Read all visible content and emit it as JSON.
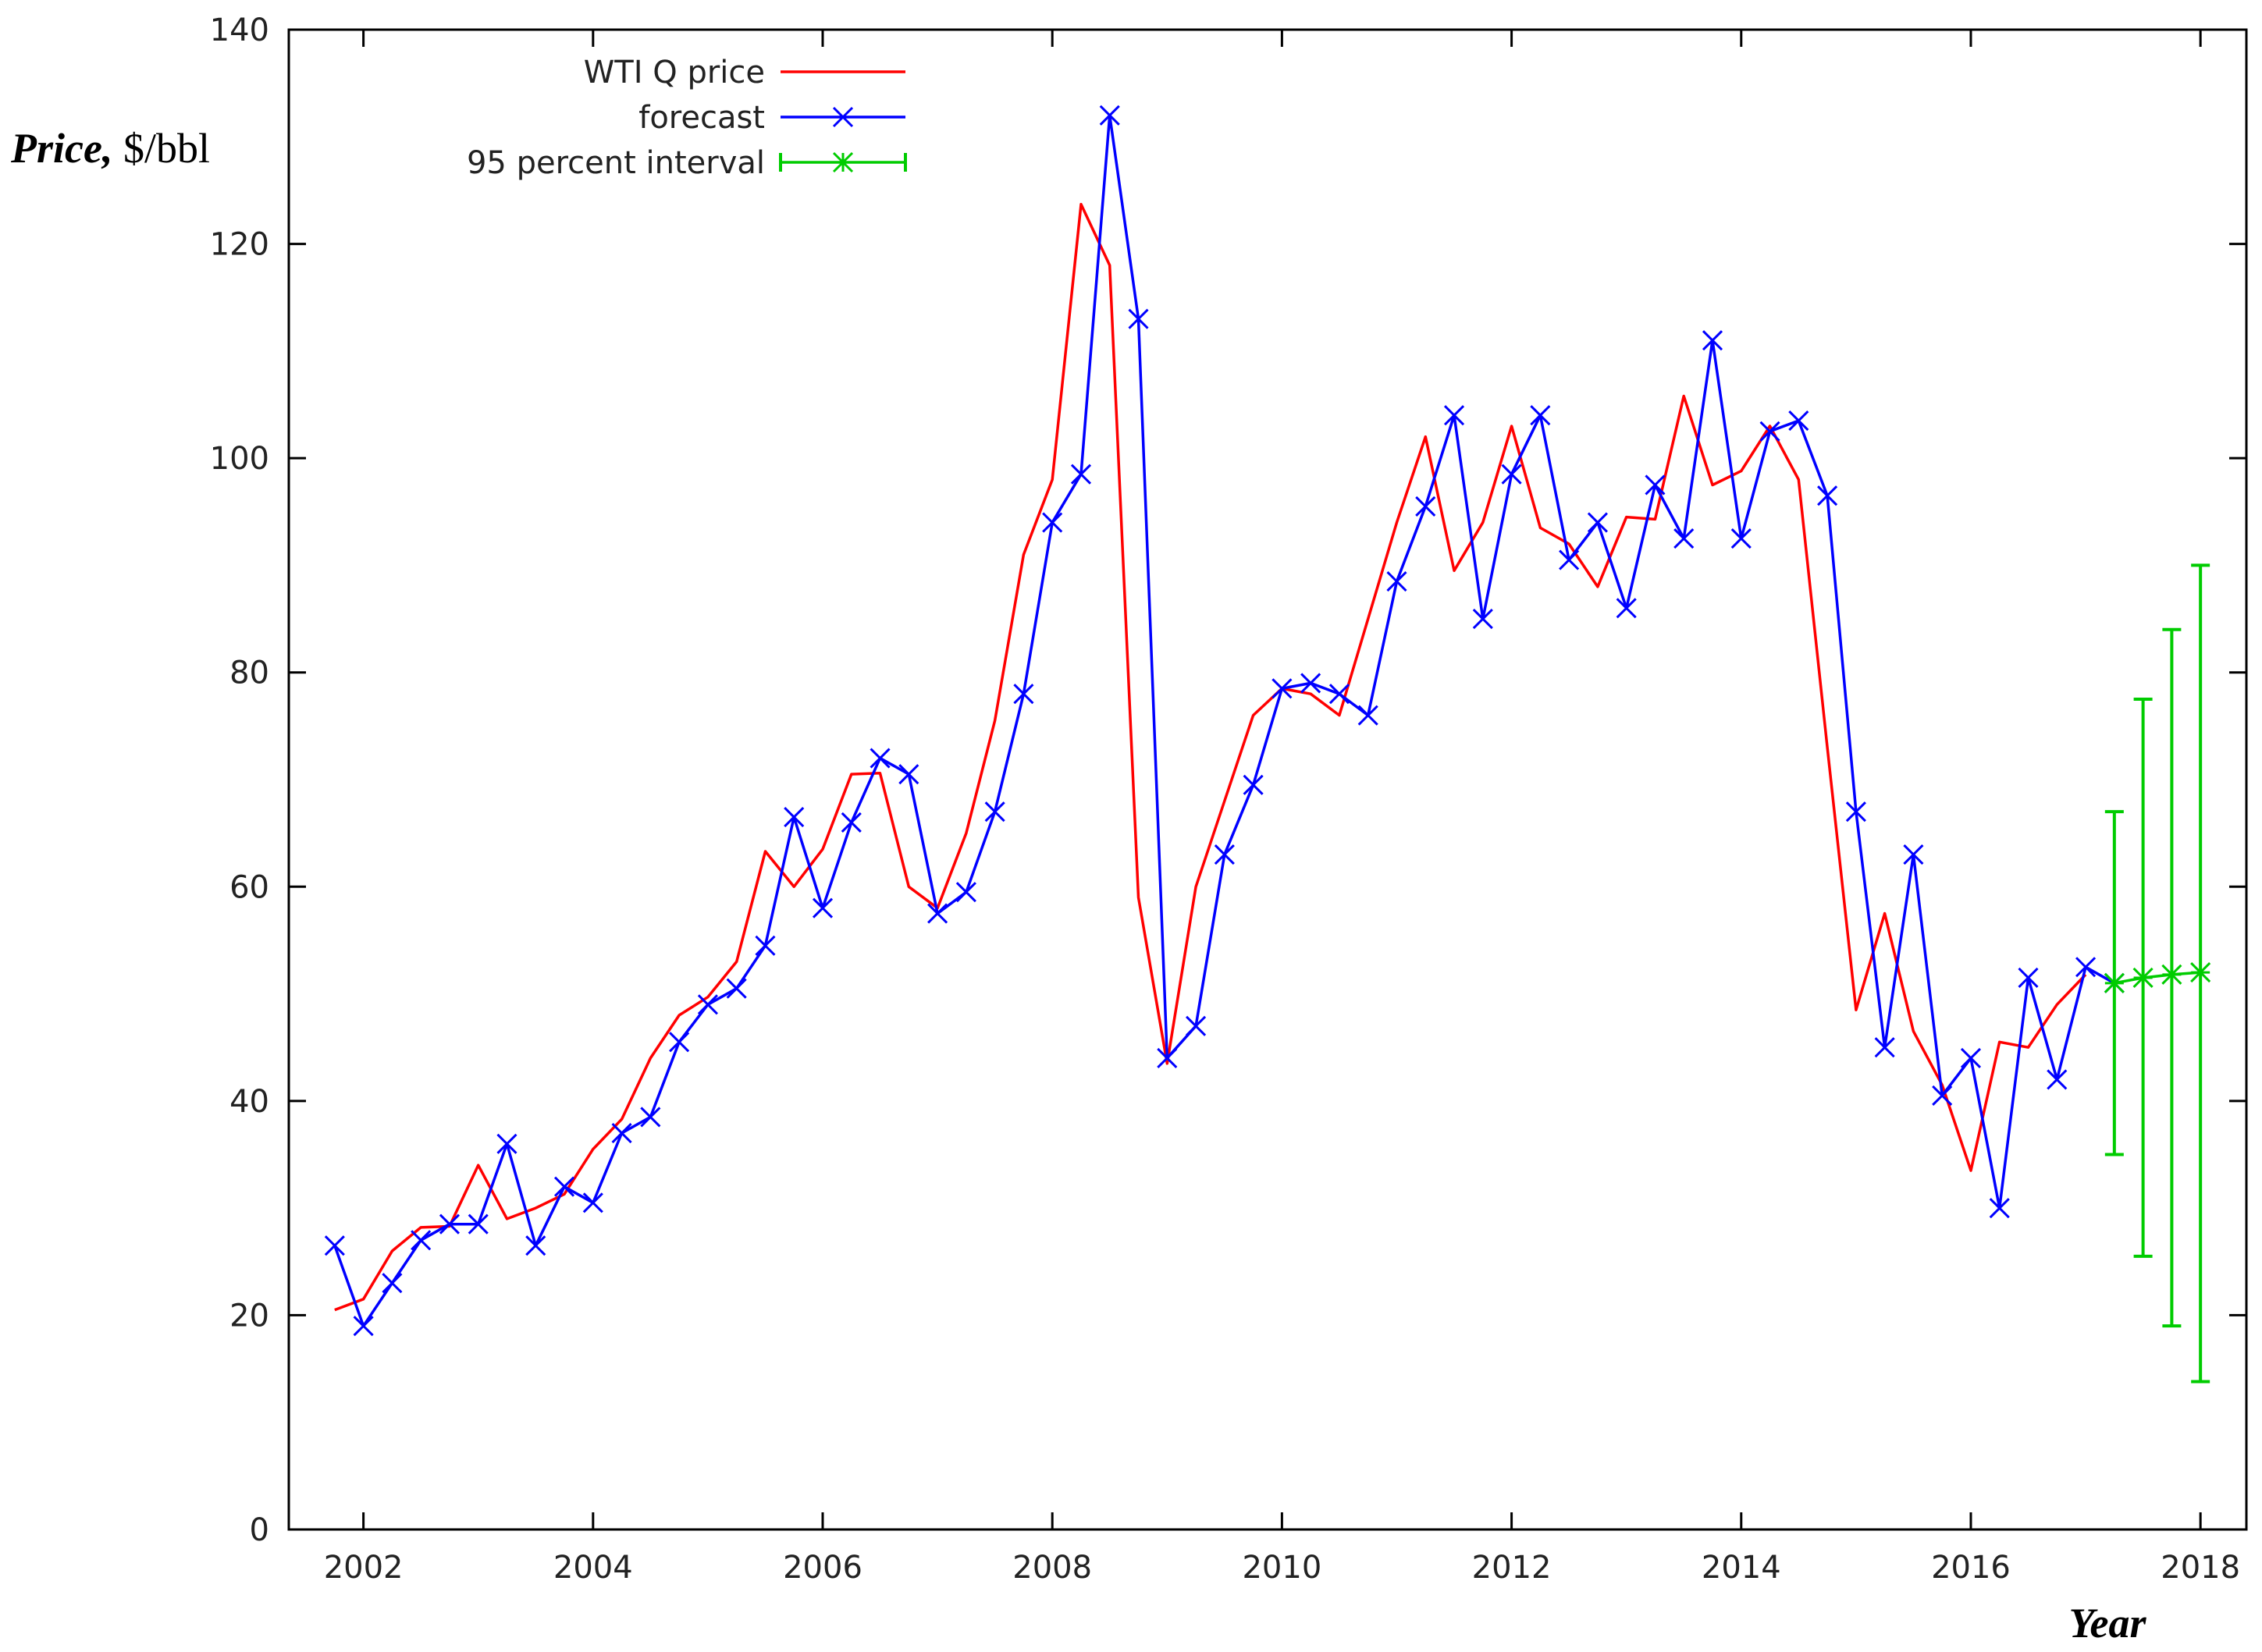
{
  "chart_data": {
    "type": "line",
    "xlabel": "Year",
    "ylabel_bold": "Price,",
    "ylabel_unit": " $/bbl",
    "xlim": [
      2001.35,
      2018.4
    ],
    "ylim": [
      0,
      140
    ],
    "grid": false,
    "legend_position": "top-left",
    "x_ticks": [
      2002,
      2004,
      2006,
      2008,
      2010,
      2012,
      2014,
      2016,
      2018
    ],
    "y_ticks": [
      0,
      20,
      40,
      60,
      80,
      100,
      120,
      140
    ],
    "series": [
      {
        "name": "WTI Q price",
        "color": "#ff0000",
        "marker": "none",
        "x": [
          2001.75,
          2002.0,
          2002.25,
          2002.5,
          2002.75,
          2003.0,
          2003.25,
          2003.5,
          2003.75,
          2004.0,
          2004.25,
          2004.5,
          2004.75,
          2005.0,
          2005.25,
          2005.5,
          2005.75,
          2006.0,
          2006.25,
          2006.5,
          2006.75,
          2007.0,
          2007.25,
          2007.5,
          2007.75,
          2008.0,
          2008.25,
          2008.5,
          2008.75,
          2009.0,
          2009.25,
          2009.5,
          2009.75,
          2010.0,
          2010.25,
          2010.5,
          2010.75,
          2011.0,
          2011.25,
          2011.5,
          2011.75,
          2012.0,
          2012.25,
          2012.5,
          2012.75,
          2013.0,
          2013.25,
          2013.5,
          2013.75,
          2014.0,
          2014.25,
          2014.5,
          2014.75,
          2015.0,
          2015.25,
          2015.5,
          2015.75,
          2016.0,
          2016.25,
          2016.5,
          2016.75,
          2017.0
        ],
        "y": [
          20.5,
          21.5,
          26.0,
          28.2,
          28.3,
          34.0,
          29.0,
          30.0,
          31.3,
          35.5,
          38.3,
          44.0,
          48.0,
          49.7,
          53.0,
          63.3,
          60.0,
          63.5,
          70.5,
          70.6,
          60.0,
          58.0,
          65.0,
          75.5,
          91.0,
          98.0,
          123.7,
          118.0,
          59.0,
          43.5,
          60.0,
          68.0,
          76.0,
          78.5,
          78.0,
          76.0,
          85.0,
          94.0,
          102.0,
          89.5,
          94.0,
          103.0,
          93.5,
          92.0,
          88.0,
          94.5,
          94.3,
          105.8,
          97.5,
          98.8,
          103.0,
          98.0,
          73.0,
          48.5,
          57.5,
          46.5,
          41.5,
          33.5,
          45.5,
          45.0,
          49.0,
          51.8
        ]
      },
      {
        "name": "forecast",
        "color": "#0000ff",
        "marker": "x",
        "x": [
          2001.75,
          2002.0,
          2002.25,
          2002.5,
          2002.75,
          2003.0,
          2003.25,
          2003.5,
          2003.75,
          2004.0,
          2004.25,
          2004.5,
          2004.75,
          2005.0,
          2005.25,
          2005.5,
          2005.75,
          2006.0,
          2006.25,
          2006.5,
          2006.75,
          2007.0,
          2007.25,
          2007.5,
          2007.75,
          2008.0,
          2008.25,
          2008.5,
          2008.75,
          2009.0,
          2009.25,
          2009.5,
          2009.75,
          2010.0,
          2010.25,
          2010.5,
          2010.75,
          2011.0,
          2011.25,
          2011.5,
          2011.75,
          2012.0,
          2012.25,
          2012.5,
          2012.75,
          2013.0,
          2013.25,
          2013.5,
          2013.75,
          2014.0,
          2014.25,
          2014.5,
          2014.75,
          2015.0,
          2015.25,
          2015.5,
          2015.75,
          2016.0,
          2016.25,
          2016.5,
          2016.75,
          2017.0,
          2017.25
        ],
        "y": [
          26.5,
          19.0,
          23.0,
          27.0,
          28.5,
          28.5,
          36.0,
          26.5,
          32.0,
          30.5,
          37.0,
          38.5,
          45.5,
          49.0,
          50.5,
          54.5,
          66.5,
          58.0,
          66.0,
          72.0,
          70.5,
          57.5,
          59.5,
          67.0,
          78.0,
          94.0,
          98.5,
          132.0,
          113.0,
          44.0,
          47.0,
          63.0,
          69.5,
          78.5,
          79.0,
          78.0,
          76.0,
          88.5,
          95.5,
          104.0,
          85.0,
          98.5,
          104.0,
          90.5,
          94.0,
          86.0,
          97.5,
          92.5,
          111.0,
          92.5,
          102.5,
          103.5,
          96.5,
          67.0,
          45.0,
          63.0,
          40.5,
          44.0,
          30.0,
          51.5,
          42.0,
          52.5,
          51.0
        ]
      },
      {
        "name": "95 percent interval",
        "color": "#00cc00",
        "marker": "asterisk",
        "x": [
          2017.25,
          2017.5,
          2017.75,
          2018.0
        ],
        "y": [
          51.0,
          51.5,
          51.8,
          52.0
        ],
        "lower": [
          35.0,
          25.5,
          19.0,
          13.8
        ],
        "upper": [
          67.0,
          77.5,
          84.0,
          90.0
        ]
      }
    ]
  }
}
